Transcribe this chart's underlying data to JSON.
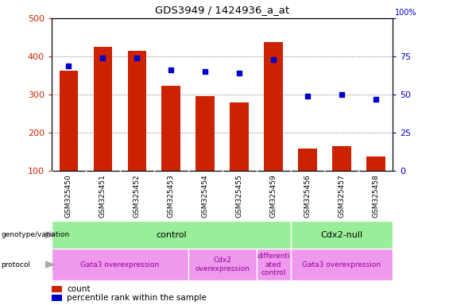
{
  "title": "GDS3949 / 1424936_a_at",
  "samples": [
    "GSM325450",
    "GSM325451",
    "GSM325452",
    "GSM325453",
    "GSM325454",
    "GSM325455",
    "GSM325459",
    "GSM325456",
    "GSM325457",
    "GSM325458"
  ],
  "counts": [
    362,
    425,
    415,
    322,
    295,
    280,
    438,
    158,
    165,
    137
  ],
  "percentiles": [
    69,
    74,
    74,
    66,
    65,
    64,
    73,
    49,
    50,
    47
  ],
  "ylim_left": [
    100,
    500
  ],
  "ylim_right": [
    0,
    100
  ],
  "yticks_left": [
    100,
    200,
    300,
    400,
    500
  ],
  "yticks_right": [
    0,
    25,
    50,
    75,
    100
  ],
  "bar_color": "#cc2200",
  "dot_color": "#0000cc",
  "tick_area_color": "#c8c8c8",
  "genotype_color": "#99ee99",
  "protocol_color": "#ee99ee",
  "genotype_groups": [
    {
      "label": "control",
      "start": 0,
      "end": 7
    },
    {
      "label": "Cdx2-null",
      "start": 7,
      "end": 10
    }
  ],
  "protocol_groups": [
    {
      "label": "Gata3 overexpression",
      "start": 0,
      "end": 4
    },
    {
      "label": "Cdx2\noverexpression",
      "start": 4,
      "end": 6
    },
    {
      "label": "differenti\nated\ncontrol",
      "start": 6,
      "end": 7
    },
    {
      "label": "Gata3 overexpression",
      "start": 7,
      "end": 10
    }
  ]
}
